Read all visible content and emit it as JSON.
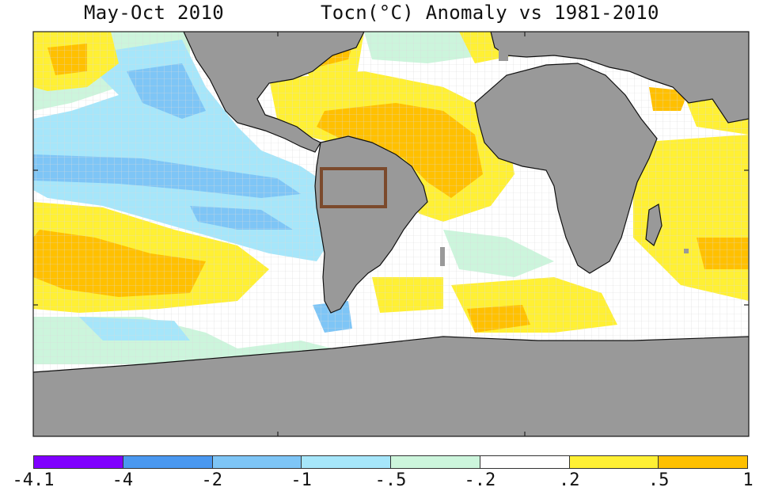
{
  "title": {
    "period": "May-Oct 2010",
    "variable": "Tocn(°C) Anomaly vs 1981-2010"
  },
  "map": {
    "region": "Atlantic Ocean and surroundings",
    "land_color": "#999999",
    "grid_color": "#d9d9d9",
    "highlight_box_color": "#7b4a2c"
  },
  "legend": {
    "colors": [
      "#8000ff",
      "#4a98f0",
      "#7ec5f6",
      "#a6e6fa",
      "#ccf5dc",
      "#ffffff",
      "#fff034",
      "#ffc000"
    ],
    "ticks": [
      "-4.1",
      "-4",
      "-2",
      "-1",
      "-.5",
      "-.2",
      ".2",
      ".5",
      "1"
    ]
  }
}
